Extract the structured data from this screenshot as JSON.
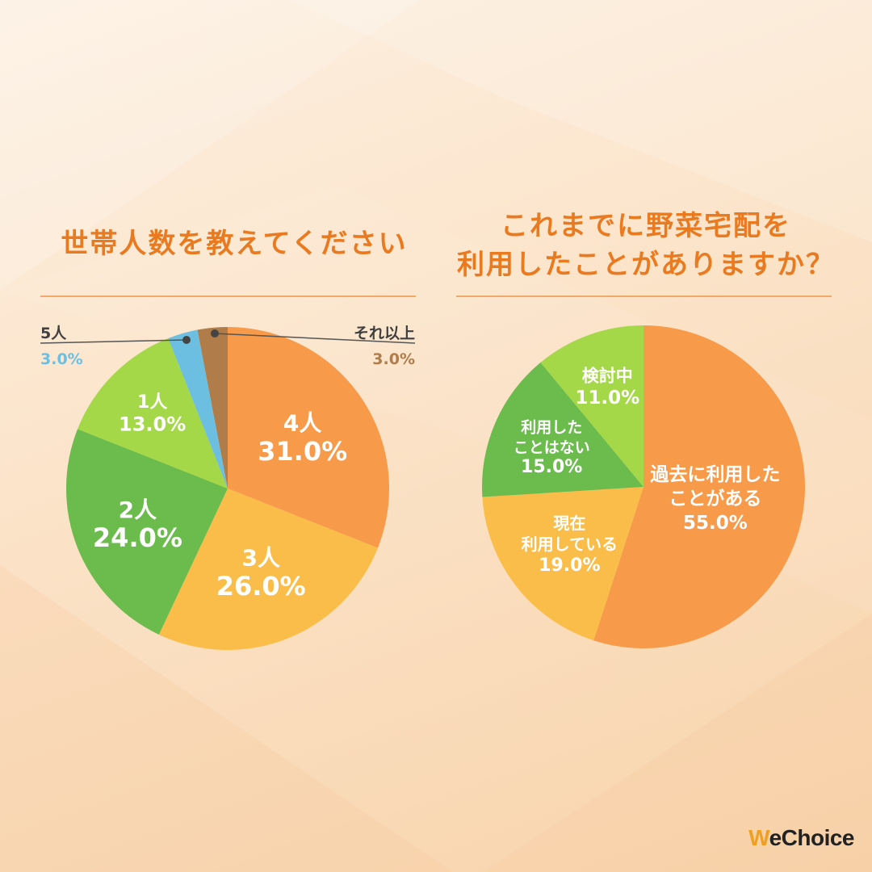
{
  "chart_data": [
    {
      "type": "pie",
      "title": "世帯人数を教えてください",
      "slices": [
        {
          "label": "4人",
          "value": 31.0,
          "pct": "31.0%",
          "color": "#f79a49"
        },
        {
          "label": "3人",
          "value": 26.0,
          "pct": "26.0%",
          "color": "#fbbd4a"
        },
        {
          "label": "2人",
          "value": 24.0,
          "pct": "24.0%",
          "color": "#6bbb4d"
        },
        {
          "label": "1人",
          "value": 13.0,
          "pct": "13.0%",
          "color": "#a5d848"
        },
        {
          "label": "5人",
          "value": 3.0,
          "pct": "3.0%",
          "color": "#6cbfe0"
        },
        {
          "label": "それ以上",
          "value": 3.0,
          "pct": "3.0%",
          "color": "#b07c4a"
        }
      ]
    },
    {
      "type": "pie",
      "title_lines": [
        "これまでに野菜宅配を",
        "利用したことがありますか？"
      ],
      "slices": [
        {
          "label_lines": [
            "過去に利用した",
            "ことがある"
          ],
          "value": 55.0,
          "pct": "55.0%",
          "color": "#f79a49"
        },
        {
          "label_lines": [
            "現在",
            "利用している"
          ],
          "value": 19.0,
          "pct": "19.0%",
          "color": "#fbbd4a"
        },
        {
          "label_lines": [
            "利用した",
            "ことはない"
          ],
          "value": 15.0,
          "pct": "15.0%",
          "color": "#6bbb4d"
        },
        {
          "label_lines": [
            "検討中"
          ],
          "value": 11.0,
          "pct": "11.0%",
          "color": "#a5d848"
        }
      ]
    }
  ],
  "brand": {
    "w": "W",
    "rest": "eChoice"
  },
  "colors": {
    "accent": "#ea7a1f",
    "line": "#f0a96a",
    "label_white": "#ffffff"
  }
}
